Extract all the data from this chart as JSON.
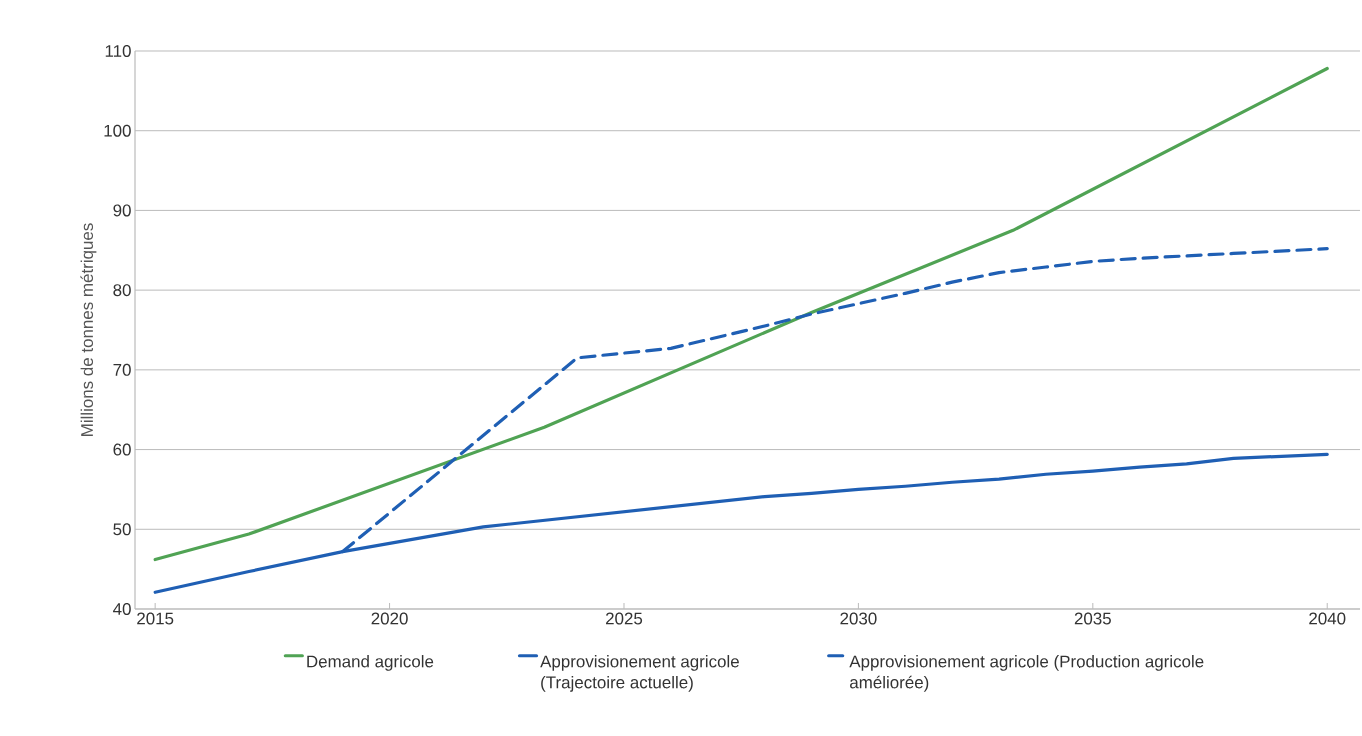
{
  "chart_data": {
    "type": "line",
    "ylabel": "Millions de tonnes métriques",
    "xlim": [
      2014.57,
      2040.7
    ],
    "xticks": [
      2015,
      2020,
      2025,
      2030,
      2035,
      2040
    ],
    "ylim": [
      40,
      110
    ],
    "yticks": [
      40,
      50,
      60,
      70,
      80,
      90,
      100,
      110
    ],
    "grid": "y",
    "legend": "bottom",
    "marker": "none",
    "series": [
      {
        "name": "Demand agricole",
        "color": "#50a354",
        "line_style": "solid",
        "x": [
          2015,
          2017,
          2023.3,
          2029,
          2033.3,
          2040
        ],
        "values": [
          46.2,
          49.4,
          62.8,
          77.2,
          87.5,
          107.8
        ]
      },
      {
        "name": "Approvisionement agricole (Trajectoire actuelle)",
        "color": "#1f5fb4",
        "line_style": "solid",
        "x": [
          2015,
          2017,
          2019,
          2022,
          2028,
          2029,
          2030,
          2031,
          2032,
          2033,
          2034,
          2035,
          2036,
          2037,
          2038,
          2040
        ],
        "values": [
          42.1,
          44.7,
          47.2,
          50.3,
          54.1,
          54.5,
          55.0,
          55.4,
          55.9,
          56.3,
          56.9,
          57.3,
          57.8,
          58.2,
          58.9,
          59.4
        ]
      },
      {
        "name": "Approvisionement agricole (Production agricole améliorée)",
        "color": "#1f5fb4",
        "line_style": "dashed",
        "x": [
          2019,
          2024,
          2026,
          2028,
          2029,
          2030,
          2031,
          2032,
          2033,
          2034,
          2035,
          2036,
          2037,
          2038,
          2040
        ],
        "values": [
          47.2,
          71.5,
          72.7,
          75.5,
          77.0,
          78.3,
          79.6,
          81.0,
          82.2,
          82.9,
          83.6,
          84.0,
          84.3,
          84.6,
          85.2
        ]
      }
    ]
  }
}
